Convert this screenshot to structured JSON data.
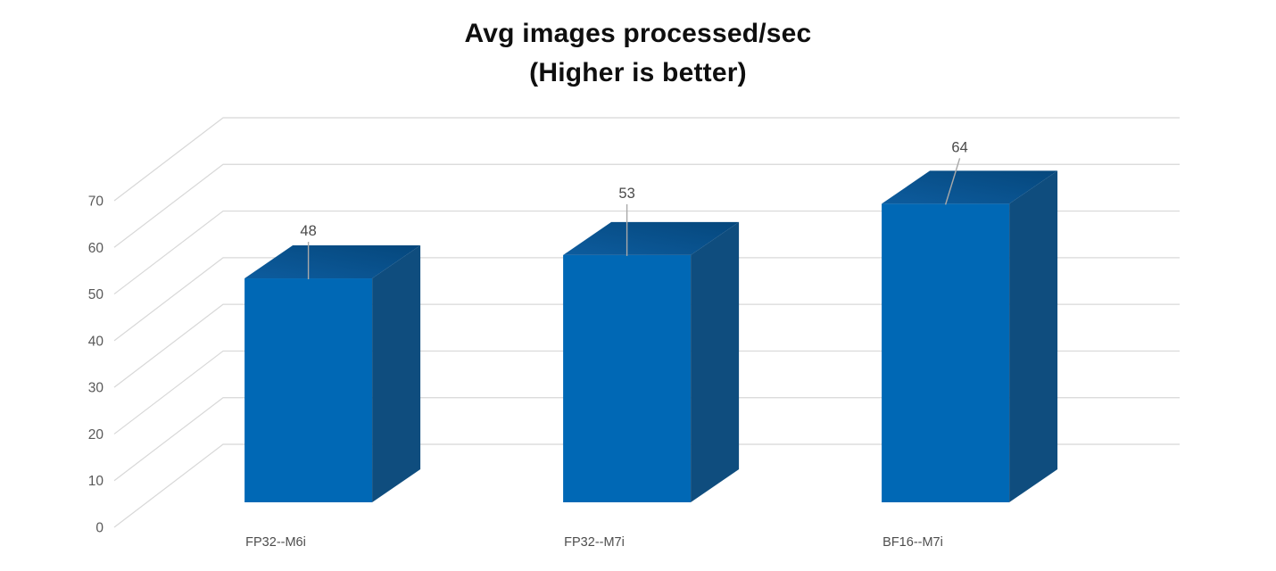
{
  "chart_data": {
    "type": "bar",
    "projection": "3d",
    "title_line1": "Avg images processed/sec",
    "title_line2": "(Higher is better)",
    "categories": [
      "FP32--M6i",
      "FP32--M7i",
      "BF16--M7i"
    ],
    "values": [
      48,
      53,
      64
    ],
    "data_labels": [
      "48",
      "53",
      "64"
    ],
    "xlabel": "",
    "ylabel": "",
    "ylim": [
      0,
      70
    ],
    "yticks": [
      0,
      10,
      20,
      30,
      40,
      50,
      60,
      70
    ],
    "grid": true,
    "legend": "none",
    "colors": {
      "bar_front": "#0068b5",
      "bar_top_near": "#0d5c9e",
      "bar_top_far": "#05477c",
      "bar_side": "#0f4d7e",
      "grid_line": "#d8d8d8",
      "axis_text": "#595959",
      "category_text": "#4d4d4d",
      "value_text": "#4a4a4a",
      "title_text": "#0f0f0f",
      "leader_line": "#a9a9a9",
      "background": "#ffffff"
    }
  }
}
